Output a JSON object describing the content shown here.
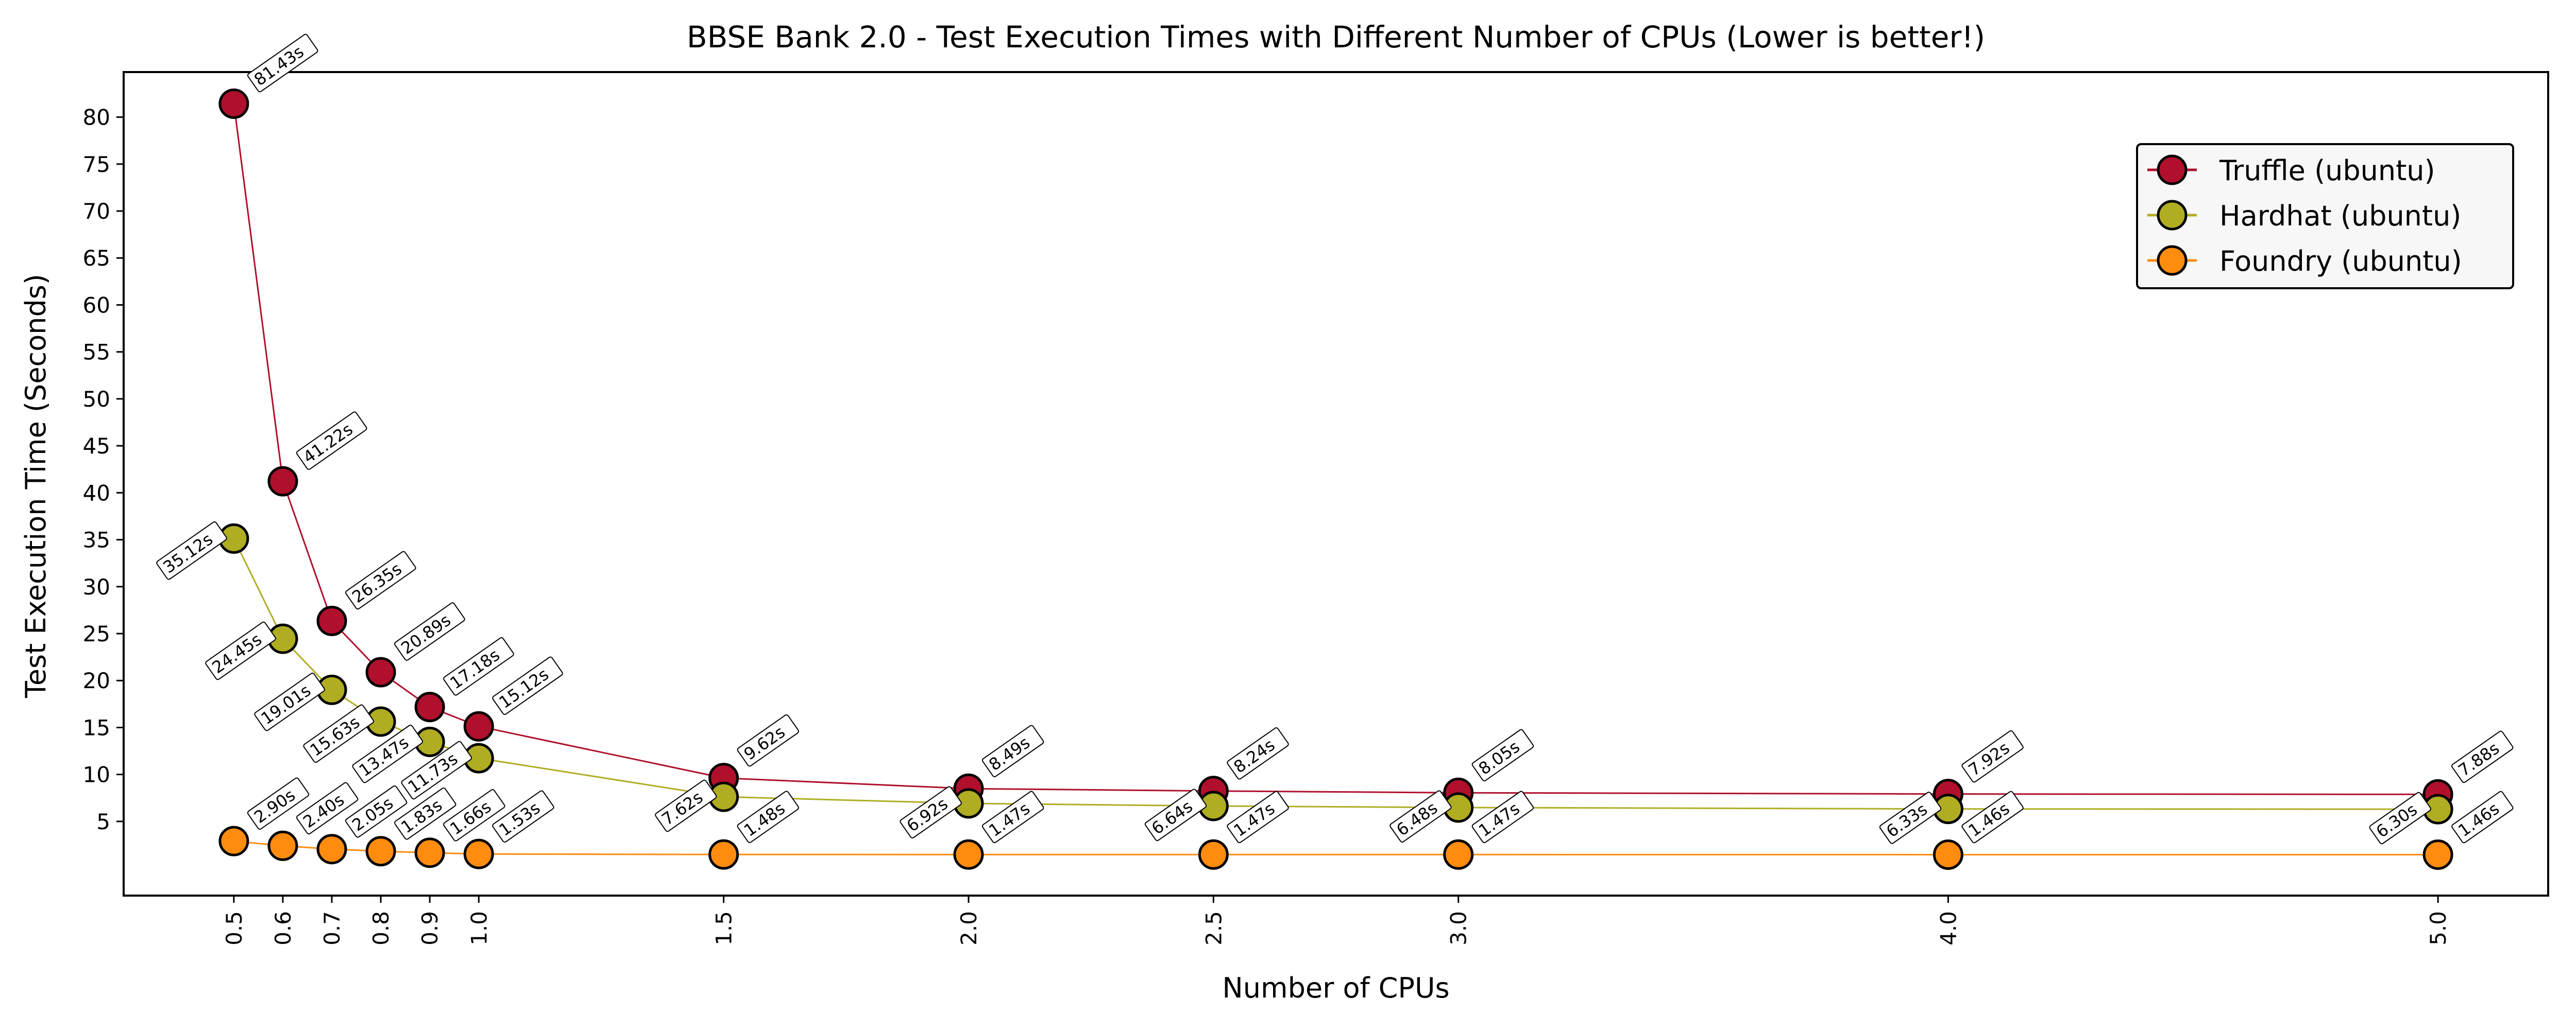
{
  "chart_data": {
    "type": "line",
    "title": "BBSE Bank 2.0 - Test Execution Times with Different Number of CPUs (Lower is better!)",
    "xlabel": "Number of CPUs",
    "ylabel": "Test Execution Time (Seconds)",
    "x": [
      0.5,
      0.6,
      0.7,
      0.8,
      0.9,
      1.0,
      1.5,
      2.0,
      2.5,
      3.0,
      4.0,
      5.0
    ],
    "x_tick_labels": [
      "0.5",
      "0.6",
      "0.7",
      "0.8",
      "0.9",
      "1.0",
      "1.5",
      "2.0",
      "2.5",
      "3.0",
      "4.0",
      "5.0"
    ],
    "y_ticks": [
      5,
      10,
      15,
      20,
      25,
      30,
      35,
      40,
      45,
      50,
      55,
      60,
      65,
      70,
      75,
      80
    ],
    "xlim": [
      0.275,
      5.225
    ],
    "ylim": [
      -2.9,
      84.8
    ],
    "grid": false,
    "legend_position": "top-right",
    "series": [
      {
        "name": "Truffle (ubuntu)",
        "color": "#b0102c",
        "values": [
          81.43,
          41.22,
          26.35,
          20.89,
          17.18,
          15.12,
          9.62,
          8.49,
          8.24,
          8.05,
          7.92,
          7.88
        ],
        "labels": [
          "81.43s",
          "41.22s",
          "26.35s",
          "20.89s",
          "17.18s",
          "15.12s",
          "9.62s",
          "8.49s",
          "8.24s",
          "8.05s",
          "7.92s",
          "7.88s"
        ]
      },
      {
        "name": "Hardhat (ubuntu)",
        "color": "#b0ad22",
        "values": [
          35.12,
          24.45,
          19.01,
          15.63,
          13.47,
          11.73,
          7.62,
          6.92,
          6.64,
          6.48,
          6.33,
          6.3
        ],
        "labels": [
          "35.12s",
          "24.45s",
          "19.01s",
          "15.63s",
          "13.47s",
          "11.73s",
          "7.62s",
          "6.92s",
          "6.64s",
          "6.48s",
          "6.33s",
          "6.30s"
        ]
      },
      {
        "name": "Foundry (ubuntu)",
        "color": "#ff8c0f",
        "values": [
          2.9,
          2.4,
          2.05,
          1.83,
          1.66,
          1.53,
          1.48,
          1.47,
          1.47,
          1.47,
          1.46,
          1.46
        ],
        "labels": [
          "2.90s",
          "2.40s",
          "2.05s",
          "1.83s",
          "1.66s",
          "1.53s",
          "1.48s",
          "1.47s",
          "1.47s",
          "1.47s",
          "1.46s",
          "1.46s"
        ]
      }
    ]
  }
}
